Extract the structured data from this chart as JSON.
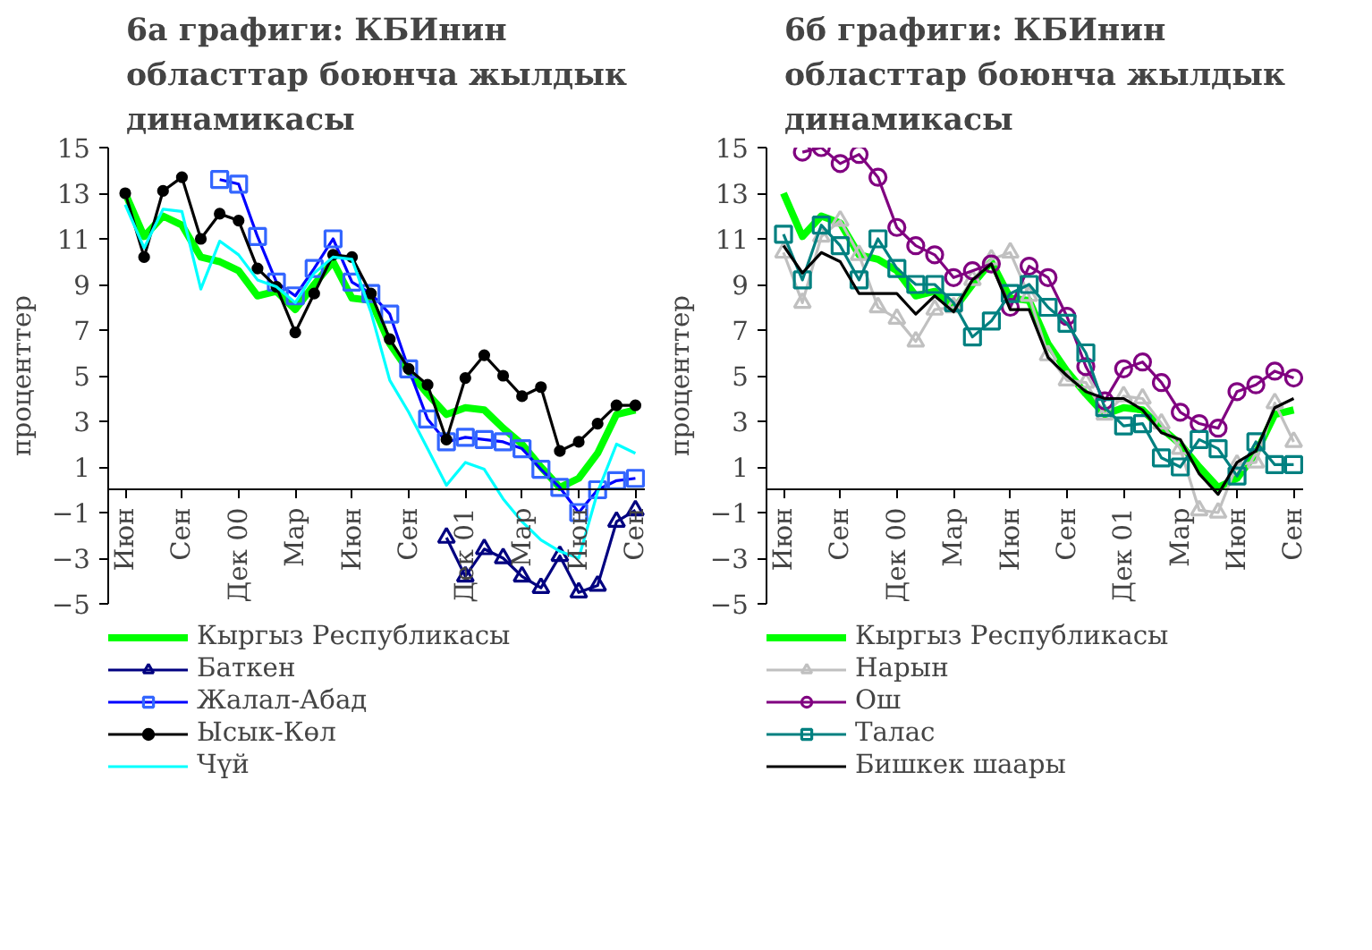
{
  "chart_data": [
    {
      "type": "line",
      "title": "6а графиги: КБИнин областтар боюнча жылдык динамикасы",
      "ylabel": "проценттер",
      "categories": [
        "Июн",
        null,
        null,
        "Сен",
        null,
        null,
        "Дек 00",
        null,
        null,
        "Мар",
        null,
        null,
        "Июн",
        null,
        null,
        "Сен",
        null,
        null,
        "Дек 01",
        null,
        null,
        "Мар",
        null,
        null,
        "Июн",
        null,
        null,
        "Сен"
      ],
      "ylim": [
        -5,
        15
      ],
      "yticks": [
        {
          "value": -5,
          "label": "−5"
        },
        {
          "value": -3,
          "label": "−3"
        },
        {
          "value": -1,
          "label": "−1"
        },
        1,
        3,
        5,
        7,
        9,
        11,
        13,
        15
      ],
      "grid": false,
      "legend": "bottom",
      "series": [
        {
          "name": "Кыргыз Республикасы",
          "color": "#00ff00",
          "marker": "none",
          "values": [
            13.0,
            11.1,
            12.0,
            11.6,
            10.2,
            10.0,
            9.6,
            8.5,
            8.7,
            7.9,
            9.0,
            10.0,
            8.4,
            8.3,
            6.4,
            5.2,
            4.2,
            3.3,
            3.6,
            3.5,
            2.7,
            2.0,
            1.0,
            0.1,
            0.5,
            1.6,
            3.3,
            3.5
          ]
        },
        {
          "name": "Баткен",
          "color": "#000080",
          "marker": "triangle",
          "values": [
            null,
            null,
            null,
            null,
            null,
            null,
            null,
            null,
            null,
            null,
            null,
            null,
            null,
            null,
            null,
            null,
            null,
            -2.1,
            -3.8,
            -2.6,
            -3.0,
            -3.8,
            -4.3,
            -2.9,
            -4.5,
            -4.2,
            -1.4,
            -0.9
          ]
        },
        {
          "name": "Жалал-Абад",
          "color": "#0000ff",
          "marker": "square",
          "values": [
            null,
            null,
            null,
            null,
            null,
            13.6,
            13.4,
            11.1,
            9.1,
            8.5,
            9.7,
            11.0,
            9.1,
            8.6,
            7.7,
            5.3,
            3.1,
            2.1,
            2.3,
            2.2,
            2.1,
            1.8,
            0.9,
            0.1,
            -1.0,
            0.0,
            0.4,
            0.5
          ]
        },
        {
          "name": "Ысык-Көл",
          "color": "#000000",
          "marker": "circle",
          "values": [
            13.0,
            10.2,
            13.1,
            13.7,
            11.0,
            12.1,
            11.8,
            9.7,
            8.9,
            6.9,
            8.6,
            10.3,
            10.2,
            8.6,
            6.6,
            5.3,
            4.6,
            2.2,
            4.9,
            5.9,
            5.0,
            4.1,
            4.5,
            1.7,
            2.1,
            2.9,
            3.7,
            3.7
          ]
        },
        {
          "name": "Чүй",
          "color": "#00ffff",
          "marker": "none",
          "values": [
            12.5,
            10.6,
            12.3,
            12.2,
            8.8,
            10.9,
            10.3,
            9.2,
            8.9,
            8.2,
            9.5,
            10.2,
            10.1,
            7.8,
            4.8,
            3.4,
            1.8,
            0.2,
            1.2,
            0.9,
            -0.4,
            -1.4,
            -2.2,
            -2.7,
            -3.0,
            -0.1,
            2.0,
            1.6
          ]
        }
      ]
    },
    {
      "type": "line",
      "title": "6б графиги: КБИнин областтар боюнча жылдык динамикасы",
      "ylabel": "проценттер",
      "categories": [
        "Июн",
        null,
        null,
        "Сен",
        null,
        null,
        "Дек 00",
        null,
        null,
        "Мар",
        null,
        null,
        "Июн",
        null,
        null,
        "Сен",
        null,
        null,
        "Дек 01",
        null,
        null,
        "Мар",
        null,
        null,
        "Июн",
        null,
        null,
        "Сен"
      ],
      "ylim": [
        -5,
        15
      ],
      "yticks": [
        {
          "value": -5,
          "label": "−5"
        },
        {
          "value": -3,
          "label": "−3"
        },
        {
          "value": -1,
          "label": "−1"
        },
        1,
        3,
        5,
        7,
        9,
        11,
        13,
        15
      ],
      "grid": false,
      "legend": "bottom",
      "series": [
        {
          "name": "Кыргыз Республикасы",
          "color": "#00ff00",
          "marker": "none",
          "values": [
            13.0,
            11.1,
            12.0,
            11.7,
            10.3,
            10.1,
            9.6,
            8.5,
            8.7,
            7.9,
            9.0,
            10.0,
            8.4,
            8.3,
            6.4,
            5.2,
            4.2,
            3.3,
            3.6,
            3.5,
            2.7,
            2.0,
            1.0,
            0.1,
            0.5,
            1.6,
            3.3,
            3.5
          ]
        },
        {
          "name": "Нарын",
          "color": "#c0c0c0",
          "marker": "triangle",
          "values": [
            10.4,
            8.2,
            11.1,
            11.8,
            10.3,
            8.0,
            7.5,
            6.5,
            7.9,
            8.0,
            9.2,
            10.1,
            10.4,
            8.5,
            5.9,
            4.8,
            4.7,
            3.3,
            4.1,
            4.0,
            2.9,
            1.8,
            -0.9,
            -1.0,
            1.1,
            1.2,
            3.8,
            2.1
          ]
        },
        {
          "name": "Ош",
          "color": "#800080",
          "marker": "circle",
          "values": [
            null,
            14.8,
            15.0,
            14.3,
            14.7,
            13.7,
            11.5,
            10.7,
            10.3,
            9.3,
            9.6,
            9.9,
            8.0,
            9.8,
            9.3,
            7.6,
            5.4,
            3.9,
            5.3,
            5.6,
            4.7,
            3.4,
            2.9,
            2.7,
            4.3,
            4.6,
            5.2,
            4.9
          ]
        },
        {
          "name": "Талас",
          "color": "#008080",
          "marker": "square",
          "values": [
            11.2,
            9.2,
            11.6,
            10.7,
            9.2,
            11.0,
            9.7,
            9.0,
            9.0,
            8.2,
            6.7,
            7.4,
            8.6,
            9.0,
            8.0,
            7.3,
            6.0,
            3.6,
            2.8,
            2.9,
            1.4,
            1.0,
            2.2,
            1.8,
            0.6,
            2.1,
            1.1,
            1.1
          ]
        },
        {
          "name": "Бишкек шаары",
          "color": "#000000",
          "marker": "none",
          "values": [
            10.7,
            9.5,
            10.4,
            10.0,
            8.6,
            8.6,
            8.6,
            7.7,
            8.5,
            7.8,
            9.2,
            9.9,
            7.9,
            7.9,
            5.8,
            5.0,
            4.3,
            4.0,
            4.0,
            3.5,
            2.5,
            2.2,
            0.7,
            -0.2,
            1.2,
            1.7,
            3.6,
            4.0
          ]
        }
      ]
    }
  ]
}
